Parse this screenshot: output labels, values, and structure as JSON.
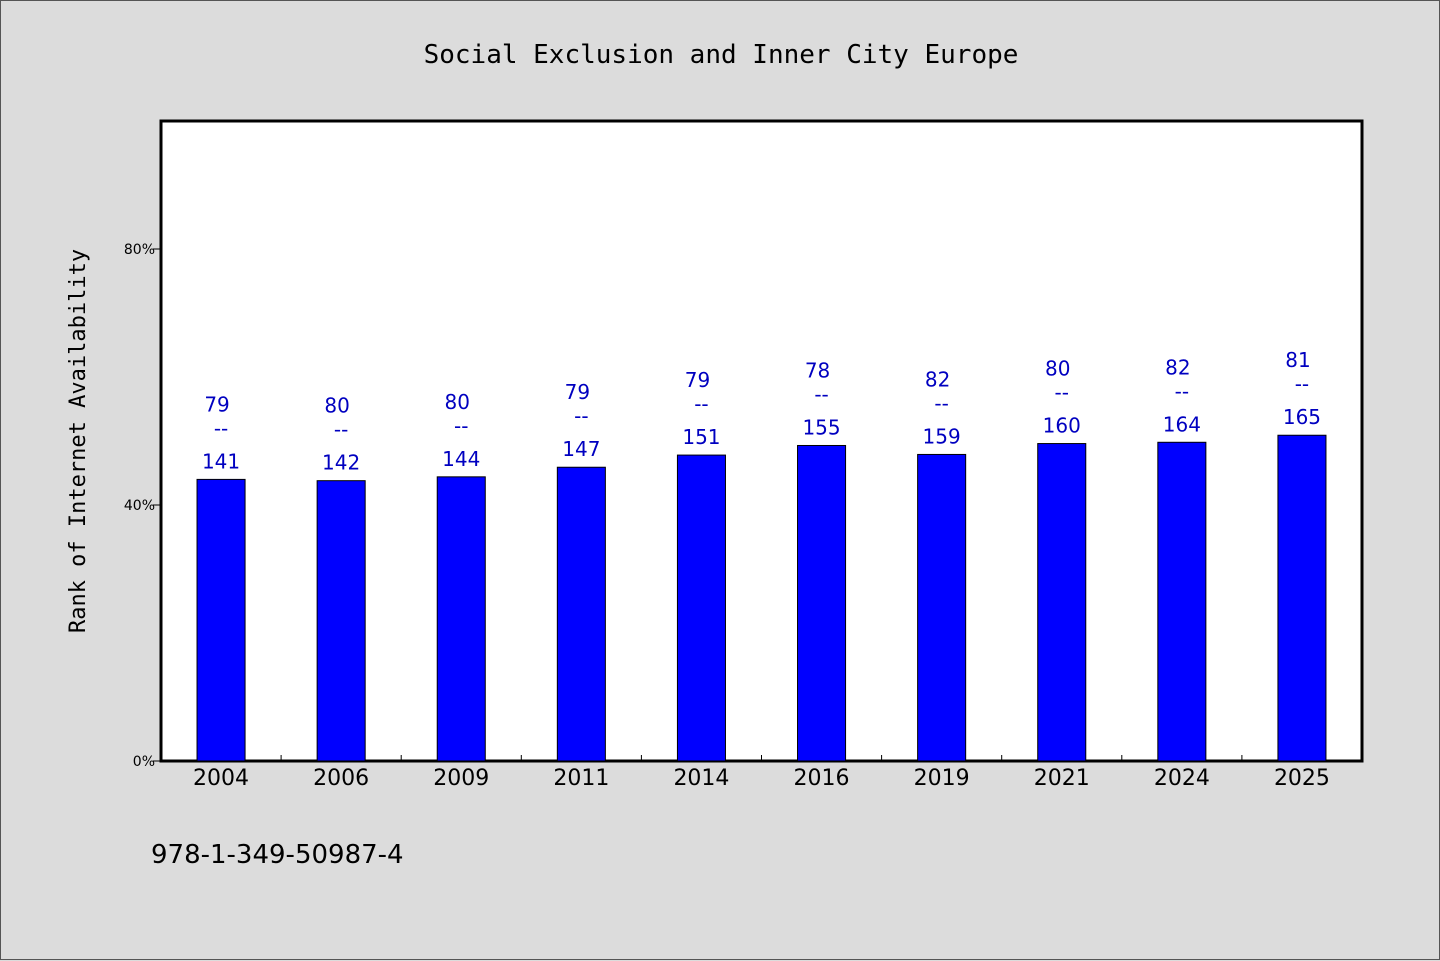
{
  "chart_data": {
    "type": "bar",
    "title": "Social Exclusion and Inner City Europe",
    "ylabel": "Rank of Internet Availability",
    "xlabel": "",
    "categories": [
      "2004",
      "2006",
      "2009",
      "2011",
      "2014",
      "2016",
      "2019",
      "2021",
      "2024",
      "2025"
    ],
    "values": [
      44.0,
      43.8,
      44.4,
      45.9,
      47.8,
      49.3,
      47.9,
      49.6,
      49.8,
      50.9
    ],
    "label_top": [
      "79",
      "80",
      "80",
      "79",
      "79",
      "78",
      "82",
      "80",
      "82",
      "81"
    ],
    "label_separator": "--",
    "label_bottom": [
      "141",
      "142",
      "144",
      "147",
      "151",
      "155",
      "159",
      "160",
      "164",
      "165"
    ],
    "ylim": [
      0,
      100
    ],
    "yticks": [
      0,
      40,
      80
    ],
    "ytick_labels": [
      "0%",
      "40%",
      "80%"
    ],
    "bar_color": "#0000ff",
    "label_color": "#0000c0",
    "grid": false,
    "legend": "none"
  },
  "footer": {
    "isbn": "978-1-349-50987-4"
  }
}
